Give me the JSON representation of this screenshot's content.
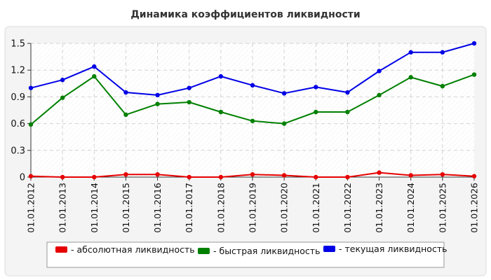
{
  "chart_data": {
    "type": "line",
    "title": "Динамика коэффициентов ликвидности",
    "xlabel": "",
    "ylabel": "",
    "categories": [
      "01.01.2012",
      "01.01.2013",
      "01.01.2014",
      "01.01.2015",
      "01.01.2016",
      "01.01.2017",
      "01.01.2018",
      "01.01.2019",
      "01.01.2020",
      "01.01.2021",
      "01.01.2022",
      "01.01.2023",
      "01.01.2024",
      "01.01.2025",
      "01.01.2026"
    ],
    "ylim": [
      0,
      1.5
    ],
    "yticks": [
      "0",
      "0.3",
      "0.6",
      "0.9",
      "1.2",
      "1.5"
    ],
    "grid": true,
    "legend_position": "bottom",
    "series": [
      {
        "name": "- абсолютная ликвидность",
        "color": "#e60000",
        "values": [
          0.01,
          0.0,
          0.0,
          0.03,
          0.03,
          0.0,
          0.0,
          0.03,
          0.02,
          0.0,
          0.0,
          0.05,
          0.02,
          0.03,
          0.01
        ]
      },
      {
        "name": "- быстрая ликвидность",
        "color": "#008000",
        "values": [
          0.59,
          0.89,
          1.13,
          0.7,
          0.82,
          0.84,
          0.73,
          0.63,
          0.6,
          0.73,
          0.73,
          0.92,
          1.12,
          1.02,
          1.15
        ]
      },
      {
        "name": "- текущая ликвидность",
        "color": "#0000e6",
        "values": [
          1.0,
          1.09,
          1.24,
          0.95,
          0.92,
          1.0,
          1.13,
          1.03,
          0.94,
          1.01,
          0.95,
          1.19,
          1.4,
          1.4,
          1.5
        ]
      }
    ]
  }
}
